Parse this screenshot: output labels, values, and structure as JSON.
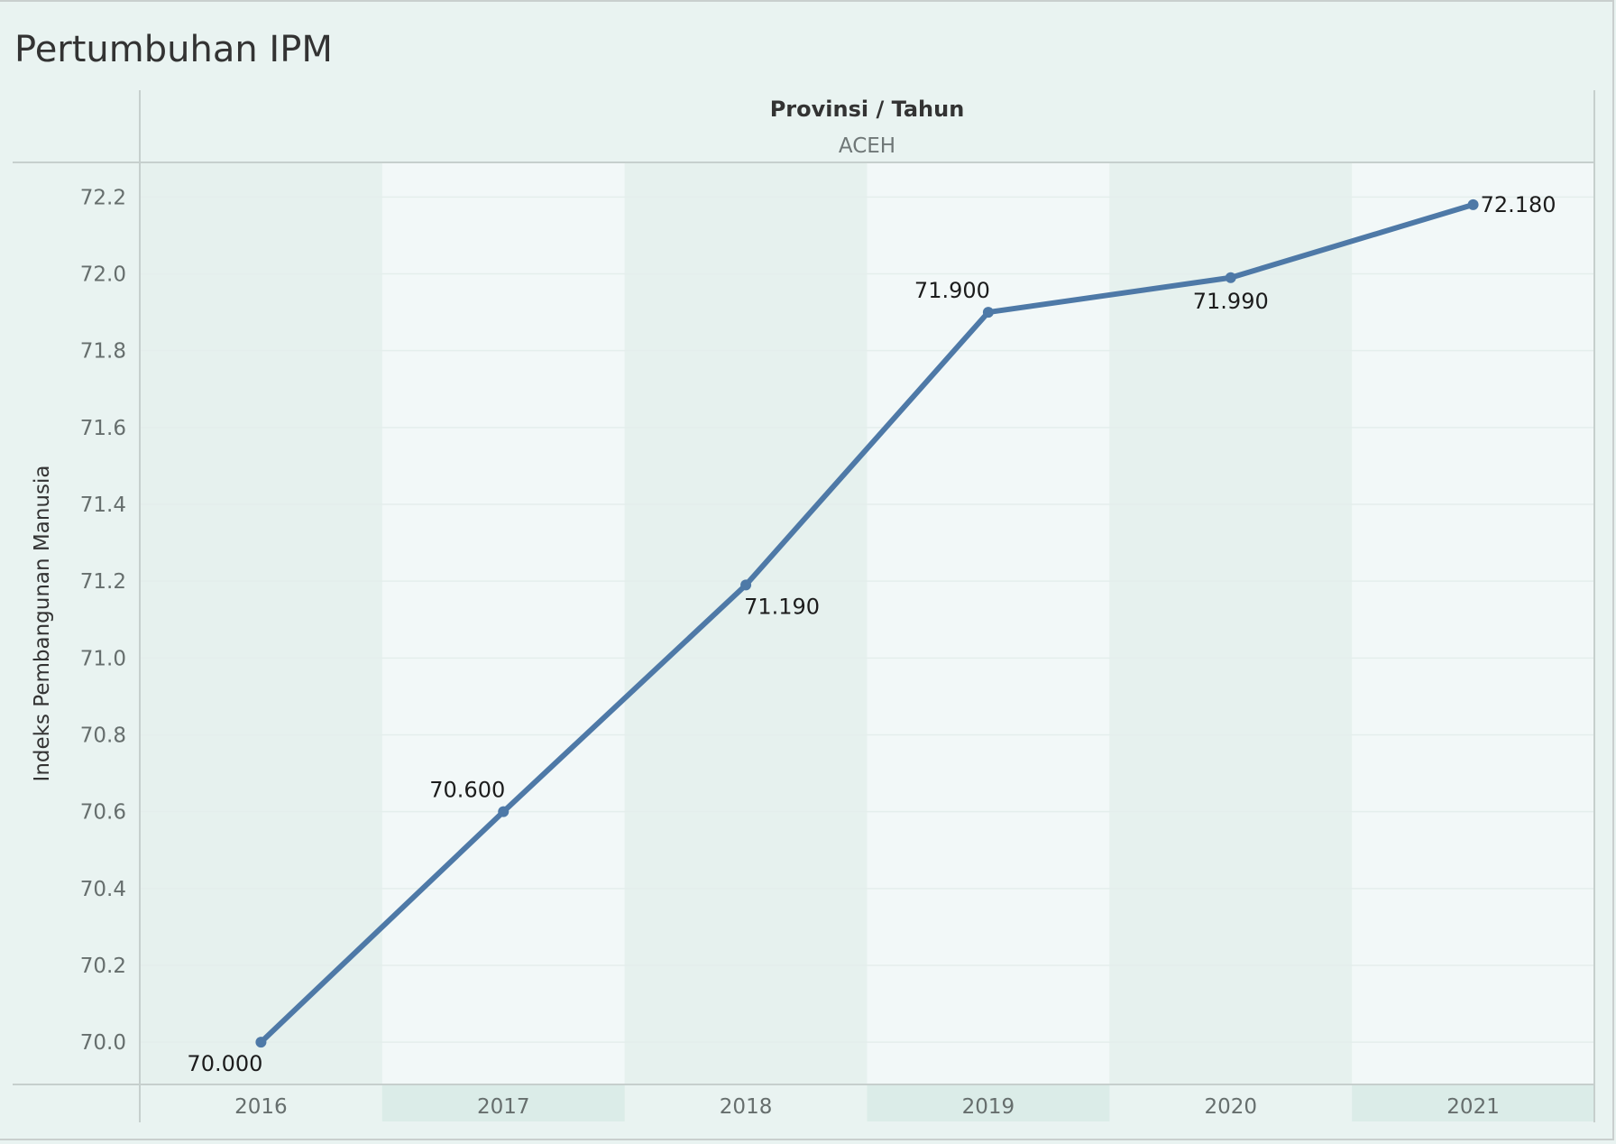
{
  "title": "Pertumbuhan IPM",
  "header": {
    "label": "Provinsi / Tahun",
    "value": "ACEH"
  },
  "colors": {
    "line": "#4e79a7",
    "band_dark": "#e6f1ee",
    "band_light": "#f2f8f8",
    "xband": "#dbece8",
    "grid": "#e4eeec"
  },
  "chart_data": {
    "type": "line",
    "categories": [
      "2016",
      "2017",
      "2018",
      "2019",
      "2020",
      "2021"
    ],
    "values": [
      70.0,
      70.6,
      71.19,
      71.9,
      71.99,
      72.18
    ],
    "data_labels": [
      "70.000",
      "70.600",
      "71.190",
      "71.900",
      "71.990",
      "72.180"
    ],
    "ylabel": "Indeks Pembangunan Manusia",
    "xlabel": "",
    "ylim": [
      69.89,
      72.29
    ],
    "yticks": [
      70.0,
      70.2,
      70.4,
      70.6,
      70.8,
      71.0,
      71.2,
      71.4,
      71.6,
      71.8,
      72.0,
      72.2
    ],
    "grid": true,
    "legend": "none"
  }
}
